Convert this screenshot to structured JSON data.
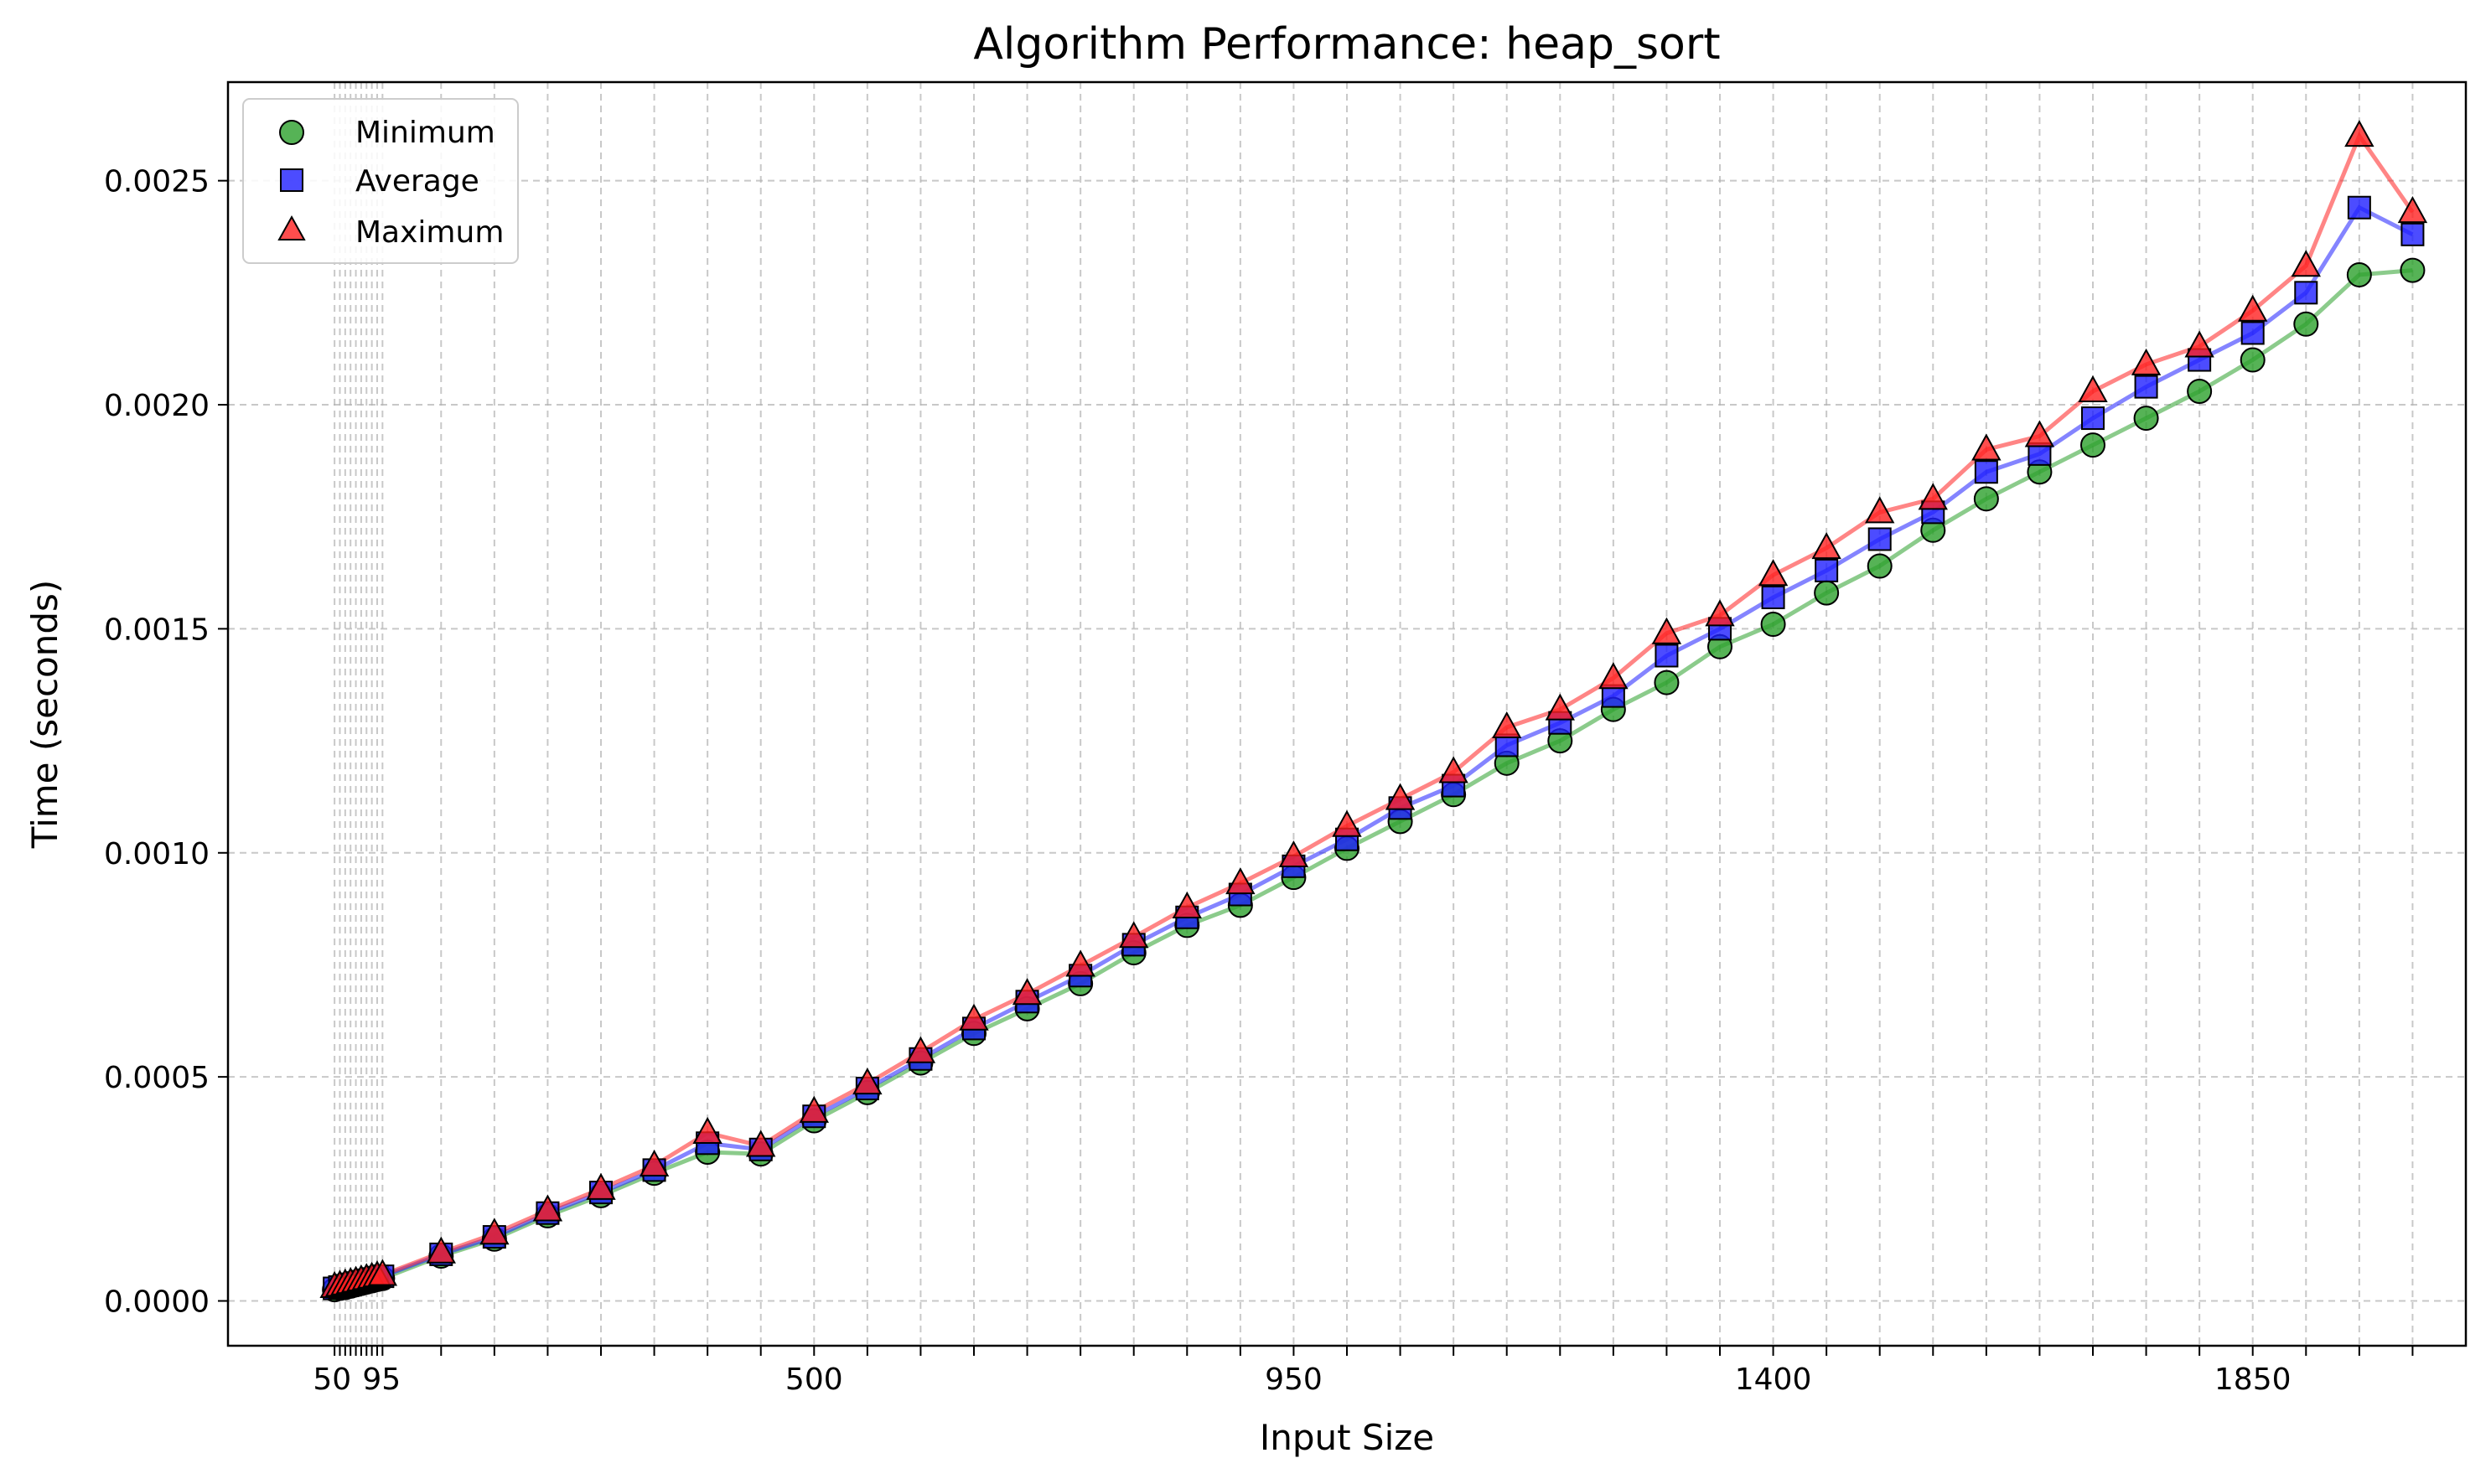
{
  "chart_data": {
    "type": "scatter",
    "title": "Algorithm Performance: heap_sort",
    "xlabel": "Input Size",
    "ylabel": "Time (seconds)",
    "x_tick_labels": [
      "50",
      "95",
      "500",
      "950",
      "1400",
      "1850"
    ],
    "x_tick_values": [
      50,
      95,
      500,
      950,
      1400,
      1850
    ],
    "y_tick_labels": [
      "0.0000",
      "0.0005",
      "0.0010",
      "0.0015",
      "0.0020",
      "0.0025"
    ],
    "y_tick_values": [
      0,
      0.0005,
      0.001,
      0.0015,
      0.002,
      0.0025
    ],
    "xlim": [
      -50,
      2050
    ],
    "ylim": [
      -0.0001,
      0.00272
    ],
    "grid": true,
    "legend_position": "top-left",
    "x": [
      50,
      55,
      60,
      65,
      70,
      75,
      80,
      85,
      90,
      95,
      150,
      200,
      250,
      300,
      350,
      400,
      450,
      500,
      550,
      600,
      650,
      700,
      750,
      800,
      850,
      900,
      950,
      1000,
      1050,
      1100,
      1150,
      1200,
      1250,
      1300,
      1350,
      1400,
      1450,
      1500,
      1550,
      1600,
      1650,
      1700,
      1750,
      1800,
      1850,
      1900,
      1950,
      2000
    ],
    "series": [
      {
        "name": "Minimum",
        "color": "#2ca02c",
        "marker": "circle",
        "values": [
          2.5e-05,
          2.8e-05,
          3e-05,
          3.3e-05,
          3.6e-05,
          3.9e-05,
          4.2e-05,
          4.5e-05,
          4.8e-05,
          5e-05,
          0.0001,
          0.000138,
          0.00019,
          0.000235,
          0.000285,
          0.000332,
          0.000328,
          0.000402,
          0.000465,
          0.000531,
          0.000597,
          0.000652,
          0.000708,
          0.000777,
          0.000838,
          0.000883,
          0.000945,
          0.00101,
          0.00107,
          0.00113,
          0.0012,
          0.00125,
          0.00132,
          0.00138,
          0.00146,
          0.00151,
          0.00158,
          0.00164,
          0.00172,
          0.00179,
          0.00185,
          0.00191,
          0.00197,
          0.00203,
          0.0021,
          0.00218,
          0.00229,
          0.0023
        ]
      },
      {
        "name": "Average",
        "color": "#1f1fff",
        "marker": "square",
        "values": [
          2.8e-05,
          3.1e-05,
          3.4e-05,
          3.7e-05,
          4e-05,
          4.3e-05,
          4.6e-05,
          4.9e-05,
          5.2e-05,
          5.5e-05,
          0.000104,
          0.000143,
          0.000196,
          0.000242,
          0.000292,
          0.000352,
          0.000338,
          0.000412,
          0.000474,
          0.00054,
          0.000608,
          0.000668,
          0.000726,
          0.000795,
          0.000856,
          0.000907,
          0.00097,
          0.00103,
          0.0011,
          0.00115,
          0.00124,
          0.00129,
          0.00135,
          0.00144,
          0.0015,
          0.00157,
          0.00163,
          0.0017,
          0.00176,
          0.00185,
          0.00189,
          0.00197,
          0.00204,
          0.0021,
          0.00216,
          0.00225,
          0.00244,
          0.00238
        ]
      },
      {
        "name": "Maximum",
        "color": "#ff2020",
        "marker": "triangle",
        "values": [
          3.1e-05,
          3.4e-05,
          3.7e-05,
          4e-05,
          4.3e-05,
          4.6e-05,
          4.9e-05,
          5.2e-05,
          5.5e-05,
          5.8e-05,
          0.000108,
          0.00015,
          0.000202,
          0.00025,
          0.000302,
          0.000375,
          0.000346,
          0.000422,
          0.000485,
          0.000555,
          0.000628,
          0.000685,
          0.000748,
          0.000812,
          0.000878,
          0.000932,
          0.000992,
          0.00106,
          0.00112,
          0.00118,
          0.00128,
          0.00132,
          0.00139,
          0.00149,
          0.00153,
          0.00162,
          0.00168,
          0.00176,
          0.00179,
          0.0019,
          0.00193,
          0.00203,
          0.00209,
          0.00213,
          0.00221,
          0.00231,
          0.0026,
          0.00243
        ]
      }
    ]
  }
}
